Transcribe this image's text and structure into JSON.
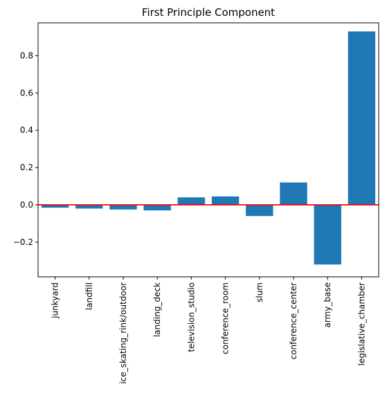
{
  "chart_data": {
    "type": "bar",
    "title": "First Principle Component",
    "xlabel": "",
    "ylabel": "",
    "categories": [
      "junkyard",
      "landfill",
      "ice_skating_rink/outdoor",
      "landing_deck",
      "television_studio",
      "conference_room",
      "slum",
      "conference_center",
      "army_base",
      "legislative_chamber"
    ],
    "values": [
      -0.015,
      -0.02,
      -0.025,
      -0.03,
      0.04,
      0.045,
      -0.06,
      0.12,
      -0.32,
      0.93
    ],
    "ylim": [
      -0.386,
      0.976
    ],
    "yticks": [
      -0.2,
      0.0,
      0.2,
      0.4,
      0.6,
      0.8
    ],
    "ytick_labels": [
      "−0.2",
      "0.0",
      "0.2",
      "0.4",
      "0.6",
      "0.8"
    ],
    "reference_line": {
      "y": 0,
      "color": "#ff0000"
    },
    "bar_color": "#1f77b4",
    "grid": false,
    "legend": "none"
  }
}
